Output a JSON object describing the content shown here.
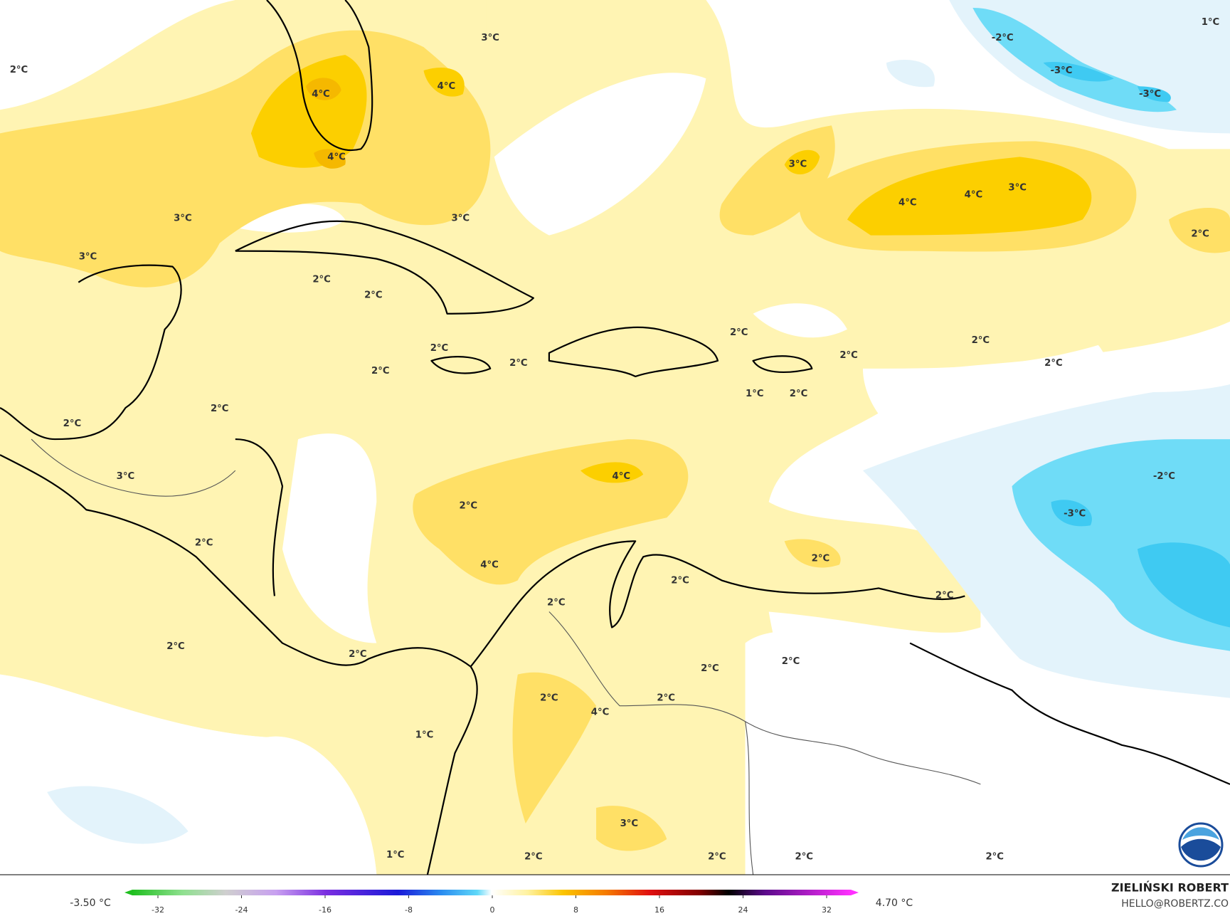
{
  "map": {
    "labels": [
      "2°C",
      "3°C",
      "4°C",
      "4°C",
      "4°C",
      "3°C",
      "3°C",
      "3°C",
      "2°C",
      "2°C",
      "2°C",
      "2°C",
      "2°C",
      "2°C",
      "2°C",
      "3°C",
      "2°C",
      "2°C",
      "2°C",
      "1°C",
      "2°C",
      "4°C",
      "4°C",
      "2°C",
      "2°C",
      "2°C",
      "2°C",
      "2°C",
      "4°C",
      "3°C",
      "1°C",
      "2°C",
      "2°C",
      "2°C",
      "2°C",
      "2°C",
      "2°C",
      "2°C",
      "1°C",
      "2°C",
      "2°C",
      "2°C",
      "2°C",
      "2°C",
      "3°C",
      "4°C",
      "4°C",
      "3°C",
      "2°C",
      "-2°C",
      "-3°C",
      "-3°C",
      "1°C",
      "-2°C",
      "-3°C"
    ]
  },
  "legend": {
    "min_label": "-3.50 °C",
    "max_label": "4.70 °C",
    "ticks": [
      -32,
      -24,
      -16,
      -8,
      0,
      8,
      16,
      24,
      32
    ]
  },
  "credit": {
    "name": "ZIELIŃSKI ROBERT",
    "email": "HELLO@ROBERTZ.CO"
  }
}
